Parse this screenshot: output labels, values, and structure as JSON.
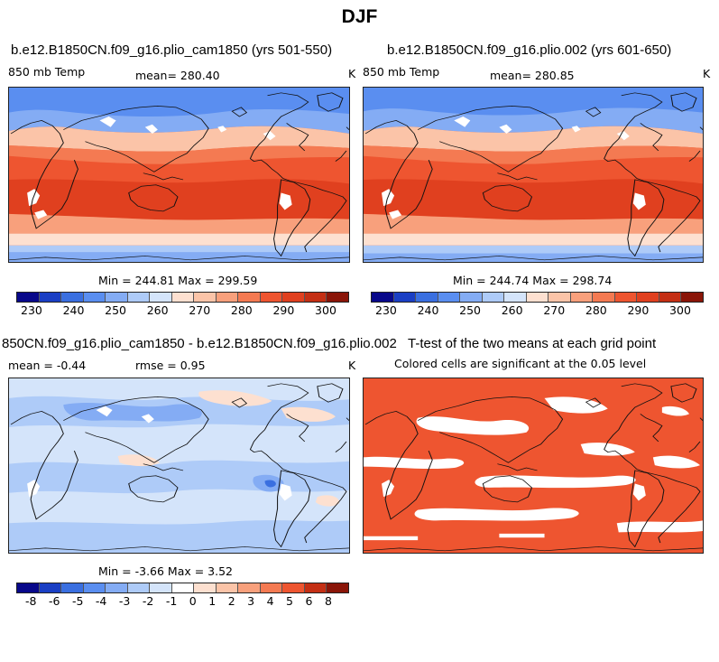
{
  "figure_title": "DJF",
  "panels": {
    "p1": {
      "title": "b.e12.B1850CN.f09_g16.plio_cam1850 (yrs 501-550)",
      "variable": "850 mb Temp",
      "mean_label": "mean= 280.40",
      "units": "K",
      "minmax": "Min = 244.81 Max = 299.59"
    },
    "p2": {
      "title": "b.e12.B1850CN.f09_g16.plio.002 (yrs 601-650)",
      "variable": "850 mb Temp",
      "mean_label": "mean= 280.85",
      "units": "K",
      "minmax": "Min = 244.74 Max = 298.74"
    },
    "p3": {
      "title": "850CN.f09_g16.plio_cam1850 - b.e12.B1850CN.f09_g16.plio.002",
      "mean_label": "mean =   -0.44",
      "rmse_label": "rmse =    0.95",
      "units": "K",
      "minmax": "Min =   -3.66 Max =    3.52"
    },
    "p4": {
      "title": "T-test of the two means at each grid point",
      "subtitle": "Colored cells are significant at the 0.05 level"
    }
  },
  "colorbar_abs": {
    "labels": [
      "230",
      "240",
      "250",
      "260",
      "270",
      "280",
      "290",
      "300"
    ],
    "colors": [
      "#08088a",
      "#1a3fc4",
      "#3a6fe0",
      "#5a8ef0",
      "#84acf4",
      "#aecbf8",
      "#d4e4fa",
      "#fde0d0",
      "#fbc4a8",
      "#f8a07c",
      "#f47a52",
      "#ee5530",
      "#e0401f",
      "#c42f14",
      "#8a1508"
    ]
  },
  "colorbar_diff": {
    "labels": [
      "-8",
      "-6",
      "-5",
      "-4",
      "-3",
      "-2",
      "-1",
      "0",
      "1",
      "2",
      "3",
      "4",
      "5",
      "6",
      "8"
    ],
    "colors": [
      "#08088a",
      "#1a3fc4",
      "#3a6fe0",
      "#5a8ef0",
      "#84acf4",
      "#aecbf8",
      "#d4e4fa",
      "#ffffff",
      "#fde0d0",
      "#fbc4a8",
      "#f8a07c",
      "#f47a52",
      "#ee5530",
      "#c42f14",
      "#8a1508"
    ]
  }
}
